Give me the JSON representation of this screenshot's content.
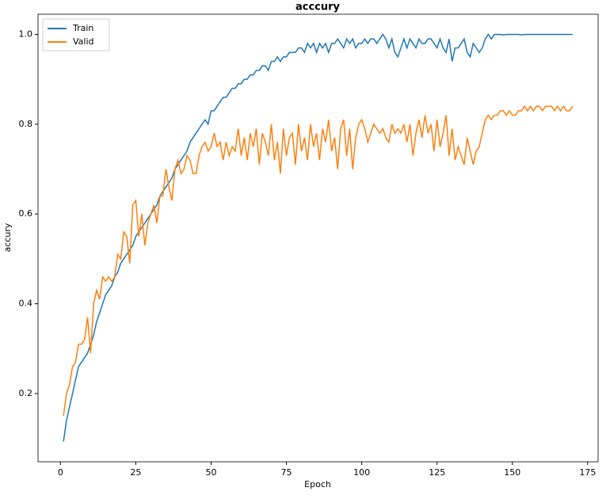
{
  "chart_data": {
    "type": "line",
    "title": "acccury",
    "xlabel": "Epoch",
    "ylabel": "accury",
    "x": [
      1,
      2,
      3,
      4,
      5,
      6,
      7,
      8,
      9,
      10,
      11,
      12,
      13,
      14,
      15,
      16,
      17,
      18,
      19,
      20,
      21,
      22,
      23,
      24,
      25,
      26,
      27,
      28,
      29,
      30,
      31,
      32,
      33,
      34,
      35,
      36,
      37,
      38,
      39,
      40,
      41,
      42,
      43,
      44,
      45,
      46,
      47,
      48,
      49,
      50,
      51,
      52,
      53,
      54,
      55,
      56,
      57,
      58,
      59,
      60,
      61,
      62,
      63,
      64,
      65,
      66,
      67,
      68,
      69,
      70,
      71,
      72,
      73,
      74,
      75,
      76,
      77,
      78,
      79,
      80,
      81,
      82,
      83,
      84,
      85,
      86,
      87,
      88,
      89,
      90,
      91,
      92,
      93,
      94,
      95,
      96,
      97,
      98,
      99,
      100,
      101,
      102,
      103,
      104,
      105,
      106,
      107,
      108,
      109,
      110,
      111,
      112,
      113,
      114,
      115,
      116,
      117,
      118,
      119,
      120,
      121,
      122,
      123,
      124,
      125,
      126,
      127,
      128,
      129,
      130,
      131,
      132,
      133,
      134,
      135,
      136,
      137,
      138,
      139,
      140,
      141,
      142,
      143,
      144,
      145,
      146,
      147,
      148,
      149,
      150,
      151,
      152,
      153,
      154,
      155,
      156,
      157,
      158,
      159,
      160,
      161,
      162,
      163,
      164,
      165,
      166,
      167,
      168,
      169,
      170
    ],
    "series": [
      {
        "name": "Train",
        "color": "#1f77b4",
        "values": [
          0.093,
          0.14,
          0.17,
          0.2,
          0.23,
          0.26,
          0.27,
          0.28,
          0.29,
          0.31,
          0.33,
          0.36,
          0.38,
          0.4,
          0.42,
          0.43,
          0.44,
          0.46,
          0.47,
          0.49,
          0.5,
          0.51,
          0.52,
          0.53,
          0.55,
          0.56,
          0.57,
          0.58,
          0.59,
          0.6,
          0.61,
          0.62,
          0.64,
          0.65,
          0.66,
          0.67,
          0.68,
          0.7,
          0.71,
          0.72,
          0.73,
          0.74,
          0.76,
          0.77,
          0.78,
          0.79,
          0.8,
          0.81,
          0.8,
          0.83,
          0.83,
          0.84,
          0.85,
          0.86,
          0.86,
          0.87,
          0.88,
          0.88,
          0.89,
          0.89,
          0.9,
          0.9,
          0.91,
          0.91,
          0.92,
          0.92,
          0.93,
          0.93,
          0.92,
          0.94,
          0.94,
          0.95,
          0.94,
          0.95,
          0.95,
          0.96,
          0.96,
          0.96,
          0.97,
          0.97,
          0.96,
          0.98,
          0.97,
          0.98,
          0.96,
          0.98,
          0.97,
          0.98,
          0.96,
          0.98,
          0.98,
          0.99,
          0.98,
          0.97,
          0.99,
          0.98,
          0.99,
          0.97,
          0.98,
          0.98,
          0.99,
          0.98,
          0.99,
          0.99,
          0.98,
          0.99,
          1.0,
          0.99,
          0.97,
          0.99,
          0.96,
          0.95,
          0.97,
          0.99,
          0.97,
          0.99,
          0.98,
          0.97,
          0.99,
          0.98,
          0.98,
          0.99,
          0.99,
          0.98,
          0.97,
          0.99,
          0.97,
          0.96,
          0.99,
          0.94,
          0.97,
          0.97,
          0.98,
          0.99,
          0.96,
          0.95,
          0.98,
          0.97,
          0.96,
          0.97,
          0.99,
          1.0,
          0.99,
          1.0,
          1.0,
          1.0,
          0.999,
          1.0,
          1.0,
          1.0,
          1.0,
          1.0,
          0.999,
          1.0,
          1.0,
          1.0,
          1.0,
          1.0,
          1.0,
          1.0,
          1.0,
          1.0,
          1.0,
          1.0,
          1.0,
          1.0,
          1.0,
          1.0,
          1.0,
          1.0
        ]
      },
      {
        "name": "Valid",
        "color": "#ff7f0e",
        "values": [
          0.15,
          0.2,
          0.22,
          0.26,
          0.27,
          0.31,
          0.31,
          0.32,
          0.37,
          0.29,
          0.4,
          0.43,
          0.41,
          0.46,
          0.45,
          0.46,
          0.45,
          0.46,
          0.51,
          0.5,
          0.56,
          0.55,
          0.49,
          0.62,
          0.63,
          0.55,
          0.6,
          0.53,
          0.58,
          0.6,
          0.62,
          0.58,
          0.64,
          0.64,
          0.7,
          0.66,
          0.63,
          0.7,
          0.72,
          0.69,
          0.7,
          0.73,
          0.72,
          0.69,
          0.69,
          0.73,
          0.75,
          0.76,
          0.74,
          0.75,
          0.78,
          0.75,
          0.76,
          0.72,
          0.76,
          0.73,
          0.75,
          0.74,
          0.79,
          0.73,
          0.77,
          0.72,
          0.78,
          0.75,
          0.79,
          0.71,
          0.78,
          0.76,
          0.73,
          0.8,
          0.72,
          0.76,
          0.69,
          0.79,
          0.73,
          0.77,
          0.78,
          0.71,
          0.8,
          0.74,
          0.77,
          0.72,
          0.8,
          0.75,
          0.78,
          0.72,
          0.79,
          0.76,
          0.81,
          0.74,
          0.77,
          0.7,
          0.79,
          0.81,
          0.73,
          0.79,
          0.7,
          0.77,
          0.8,
          0.81,
          0.79,
          0.76,
          0.78,
          0.8,
          0.79,
          0.78,
          0.79,
          0.77,
          0.76,
          0.8,
          0.78,
          0.79,
          0.78,
          0.8,
          0.76,
          0.8,
          0.73,
          0.78,
          0.81,
          0.77,
          0.82,
          0.78,
          0.8,
          0.74,
          0.81,
          0.75,
          0.78,
          0.82,
          0.73,
          0.79,
          0.72,
          0.75,
          0.73,
          0.71,
          0.77,
          0.74,
          0.71,
          0.74,
          0.75,
          0.78,
          0.81,
          0.82,
          0.81,
          0.82,
          0.82,
          0.83,
          0.83,
          0.82,
          0.83,
          0.82,
          0.82,
          0.83,
          0.83,
          0.84,
          0.83,
          0.84,
          0.83,
          0.84,
          0.84,
          0.83,
          0.84,
          0.84,
          0.84,
          0.83,
          0.84,
          0.83,
          0.84,
          0.83,
          0.83,
          0.84
        ]
      }
    ],
    "xlim": [
      -7.45,
      178.45
    ],
    "ylim": [
      0.048,
      1.045
    ],
    "xticks": [
      0,
      25,
      50,
      75,
      100,
      125,
      150,
      175
    ],
    "yticks": [
      0.2,
      0.4,
      0.6,
      0.8,
      {
        "value": 1,
        "label": "1.0"
      }
    ],
    "legend": "upper left"
  }
}
